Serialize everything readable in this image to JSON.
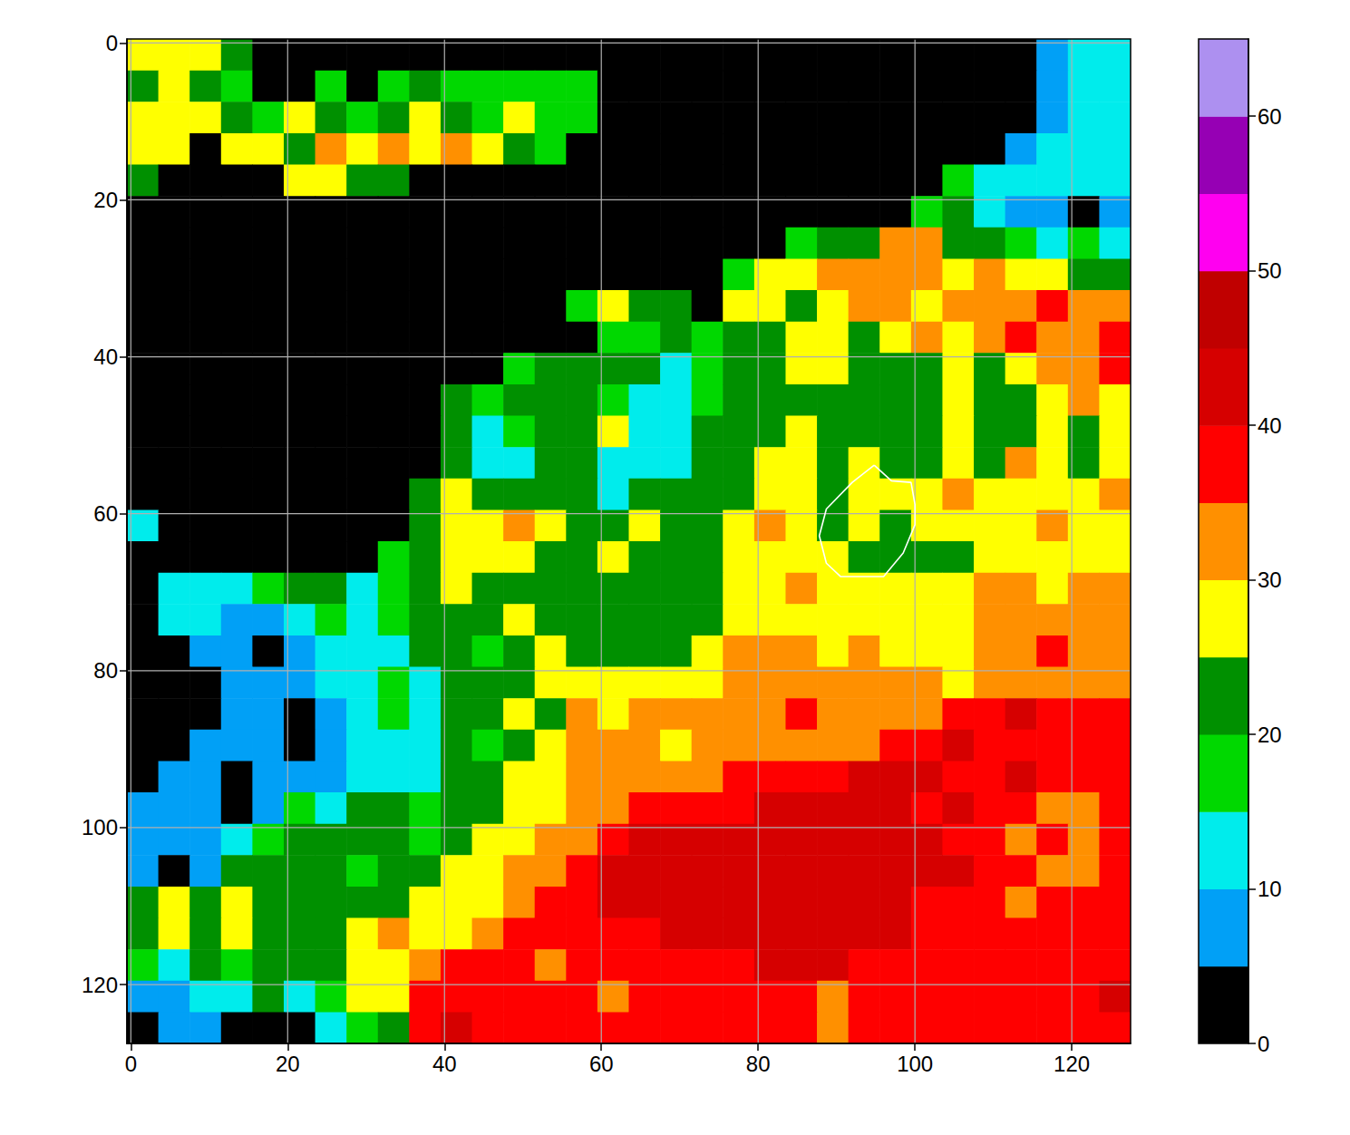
{
  "chart_data": {
    "type": "heatmap",
    "xlim": [
      -0.5,
      127.5
    ],
    "ylim": [
      127.5,
      -0.5
    ],
    "xticks": [
      0,
      20,
      40,
      60,
      80,
      100,
      120
    ],
    "yticks": [
      0,
      20,
      40,
      60,
      80,
      100,
      120
    ],
    "grid": true,
    "cells": {
      "x": [
        1.5,
        5.5,
        9.5,
        13.5,
        17.5,
        21.5,
        25.5,
        29.5,
        33.5,
        37.5,
        41.5,
        45.5,
        49.5,
        53.5,
        57.5,
        61.5,
        65.5,
        69.5,
        73.5,
        77.5,
        81.5,
        85.5,
        89.5,
        93.5,
        97.5,
        101.5,
        105.5,
        109.5,
        113.5,
        117.5,
        121.5,
        125.5
      ],
      "y": [
        1.5,
        5.5,
        9.5,
        13.5,
        17.5,
        21.5,
        25.5,
        29.5,
        33.5,
        37.5,
        41.5,
        45.5,
        49.5,
        53.5,
        57.5,
        61.5,
        65.5,
        69.5,
        73.5,
        77.5,
        81.5,
        85.5,
        89.5,
        93.5,
        97.5,
        101.5,
        105.5,
        109.5,
        113.5,
        117.5,
        121.5,
        125.5
      ],
      "values": [
        [
          27,
          27,
          27,
          22,
          0,
          0,
          0,
          0,
          0,
          0,
          0,
          0,
          0,
          0,
          0,
          0,
          0,
          0,
          0,
          0,
          0,
          0,
          0,
          0,
          0,
          0,
          0,
          0,
          0,
          7,
          12,
          12
        ],
        [
          22,
          27,
          22,
          17,
          0,
          0,
          17,
          0,
          17,
          22,
          17,
          17,
          17,
          17,
          17,
          0,
          0,
          0,
          0,
          0,
          0,
          0,
          0,
          0,
          0,
          0,
          0,
          0,
          0,
          7,
          12,
          12
        ],
        [
          27,
          27,
          27,
          22,
          17,
          27,
          22,
          17,
          22,
          27,
          22,
          17,
          27,
          17,
          17,
          0,
          0,
          0,
          0,
          0,
          0,
          0,
          0,
          0,
          0,
          0,
          0,
          0,
          0,
          7,
          12,
          12
        ],
        [
          27,
          27,
          0,
          27,
          27,
          22,
          32,
          27,
          32,
          27,
          32,
          27,
          22,
          17,
          0,
          0,
          0,
          0,
          0,
          0,
          0,
          0,
          0,
          0,
          0,
          0,
          0,
          0,
          7,
          12,
          12,
          12
        ],
        [
          22,
          0,
          0,
          0,
          0,
          27,
          27,
          22,
          22,
          0,
          0,
          0,
          0,
          0,
          0,
          0,
          0,
          0,
          0,
          0,
          0,
          0,
          0,
          0,
          0,
          0,
          17,
          12,
          12,
          12,
          12,
          12
        ],
        [
          0,
          0,
          0,
          0,
          0,
          0,
          0,
          0,
          0,
          0,
          0,
          0,
          0,
          0,
          0,
          0,
          0,
          0,
          0,
          0,
          0,
          0,
          0,
          0,
          0,
          17,
          22,
          12,
          7,
          7,
          0,
          7
        ],
        [
          0,
          0,
          0,
          0,
          0,
          0,
          0,
          0,
          0,
          0,
          0,
          0,
          0,
          0,
          0,
          0,
          0,
          0,
          0,
          0,
          0,
          17,
          22,
          22,
          32,
          32,
          22,
          22,
          17,
          12,
          17,
          12
        ],
        [
          0,
          0,
          0,
          0,
          0,
          0,
          0,
          0,
          0,
          0,
          0,
          0,
          0,
          0,
          0,
          0,
          0,
          0,
          0,
          17,
          27,
          27,
          32,
          32,
          32,
          32,
          27,
          32,
          27,
          27,
          22,
          22
        ],
        [
          0,
          0,
          0,
          0,
          0,
          0,
          0,
          0,
          0,
          0,
          0,
          0,
          0,
          0,
          17,
          27,
          22,
          22,
          0,
          27,
          27,
          22,
          27,
          32,
          32,
          27,
          32,
          32,
          32,
          37,
          32,
          32
        ],
        [
          0,
          0,
          0,
          0,
          0,
          0,
          0,
          0,
          0,
          0,
          0,
          0,
          0,
          0,
          0,
          17,
          17,
          22,
          17,
          22,
          22,
          27,
          27,
          22,
          27,
          32,
          27,
          32,
          37,
          32,
          32,
          37
        ],
        [
          0,
          0,
          0,
          0,
          0,
          0,
          0,
          0,
          0,
          0,
          0,
          0,
          17,
          22,
          22,
          22,
          22,
          12,
          17,
          22,
          22,
          27,
          27,
          22,
          22,
          22,
          27,
          22,
          27,
          32,
          32,
          37
        ],
        [
          0,
          0,
          0,
          0,
          0,
          0,
          0,
          0,
          0,
          0,
          22,
          17,
          22,
          22,
          22,
          17,
          12,
          12,
          17,
          22,
          22,
          22,
          22,
          22,
          22,
          22,
          27,
          22,
          22,
          27,
          32,
          27
        ],
        [
          0,
          0,
          0,
          0,
          0,
          0,
          0,
          0,
          0,
          0,
          22,
          12,
          17,
          22,
          22,
          27,
          12,
          12,
          22,
          22,
          22,
          27,
          22,
          22,
          22,
          22,
          27,
          22,
          22,
          27,
          22,
          27
        ],
        [
          0,
          0,
          0,
          0,
          0,
          0,
          0,
          0,
          0,
          0,
          22,
          12,
          12,
          22,
          22,
          12,
          12,
          12,
          22,
          22,
          27,
          27,
          22,
          27,
          22,
          22,
          27,
          22,
          32,
          27,
          22,
          27
        ],
        [
          0,
          0,
          0,
          0,
          0,
          0,
          0,
          0,
          0,
          22,
          27,
          22,
          22,
          22,
          22,
          12,
          22,
          22,
          22,
          22,
          27,
          27,
          22,
          27,
          27,
          27,
          32,
          27,
          27,
          27,
          27,
          32
        ],
        [
          12,
          0,
          0,
          0,
          0,
          0,
          0,
          0,
          0,
          22,
          27,
          27,
          32,
          27,
          22,
          22,
          27,
          22,
          22,
          27,
          32,
          27,
          22,
          27,
          22,
          27,
          27,
          27,
          27,
          32,
          27,
          27
        ],
        [
          0,
          0,
          0,
          0,
          0,
          0,
          0,
          0,
          17,
          22,
          27,
          27,
          27,
          22,
          22,
          27,
          22,
          22,
          22,
          27,
          27,
          27,
          27,
          22,
          22,
          22,
          22,
          27,
          27,
          27,
          27,
          27
        ],
        [
          0,
          12,
          12,
          12,
          17,
          22,
          22,
          12,
          17,
          22,
          27,
          22,
          22,
          22,
          22,
          22,
          22,
          22,
          22,
          27,
          27,
          32,
          27,
          27,
          27,
          27,
          27,
          32,
          32,
          27,
          32,
          32
        ],
        [
          0,
          12,
          12,
          7,
          7,
          12,
          17,
          12,
          17,
          22,
          22,
          22,
          27,
          22,
          22,
          22,
          22,
          22,
          22,
          27,
          27,
          27,
          27,
          27,
          27,
          27,
          27,
          32,
          32,
          32,
          32,
          32
        ],
        [
          0,
          0,
          7,
          7,
          0,
          7,
          12,
          12,
          12,
          22,
          22,
          17,
          22,
          27,
          22,
          22,
          22,
          22,
          27,
          32,
          32,
          32,
          27,
          32,
          27,
          27,
          27,
          32,
          32,
          37,
          32,
          32
        ],
        [
          0,
          0,
          0,
          7,
          7,
          7,
          12,
          12,
          17,
          12,
          22,
          22,
          22,
          27,
          27,
          27,
          27,
          27,
          27,
          32,
          32,
          32,
          32,
          32,
          32,
          32,
          27,
          32,
          32,
          32,
          32,
          32
        ],
        [
          0,
          0,
          0,
          7,
          7,
          0,
          7,
          12,
          17,
          12,
          22,
          22,
          27,
          22,
          32,
          27,
          32,
          32,
          32,
          32,
          32,
          37,
          32,
          32,
          32,
          32,
          37,
          37,
          42,
          37,
          37,
          37
        ],
        [
          0,
          0,
          7,
          7,
          7,
          0,
          7,
          12,
          12,
          12,
          22,
          17,
          22,
          27,
          32,
          32,
          32,
          27,
          32,
          32,
          32,
          32,
          32,
          32,
          37,
          37,
          42,
          37,
          37,
          37,
          37,
          37
        ],
        [
          0,
          7,
          7,
          0,
          7,
          7,
          7,
          12,
          12,
          12,
          22,
          22,
          27,
          27,
          32,
          32,
          32,
          32,
          32,
          37,
          37,
          37,
          37,
          42,
          42,
          42,
          37,
          37,
          42,
          37,
          37,
          37
        ],
        [
          7,
          7,
          7,
          0,
          7,
          17,
          12,
          22,
          22,
          17,
          22,
          22,
          27,
          27,
          32,
          32,
          37,
          37,
          37,
          37,
          42,
          42,
          42,
          42,
          42,
          37,
          42,
          37,
          37,
          32,
          32,
          37
        ],
        [
          7,
          7,
          7,
          12,
          17,
          22,
          22,
          22,
          22,
          17,
          22,
          27,
          27,
          32,
          32,
          37,
          42,
          42,
          42,
          42,
          42,
          42,
          42,
          42,
          42,
          42,
          37,
          37,
          32,
          37,
          32,
          37
        ],
        [
          7,
          0,
          7,
          22,
          22,
          22,
          22,
          17,
          22,
          22,
          27,
          27,
          32,
          32,
          37,
          42,
          42,
          42,
          42,
          42,
          42,
          42,
          42,
          42,
          42,
          42,
          42,
          37,
          37,
          32,
          32,
          37
        ],
        [
          22,
          27,
          22,
          27,
          22,
          22,
          22,
          22,
          22,
          27,
          27,
          27,
          32,
          37,
          37,
          42,
          42,
          42,
          42,
          42,
          42,
          42,
          42,
          42,
          42,
          37,
          37,
          37,
          32,
          37,
          37,
          37
        ],
        [
          22,
          27,
          22,
          27,
          22,
          22,
          22,
          27,
          32,
          27,
          27,
          32,
          37,
          37,
          37,
          37,
          37,
          42,
          42,
          42,
          42,
          42,
          42,
          42,
          42,
          37,
          37,
          37,
          37,
          37,
          37,
          37
        ],
        [
          17,
          12,
          22,
          17,
          22,
          22,
          22,
          27,
          27,
          32,
          37,
          37,
          37,
          32,
          37,
          37,
          37,
          37,
          37,
          37,
          42,
          42,
          42,
          37,
          37,
          37,
          37,
          37,
          37,
          37,
          37,
          37
        ],
        [
          7,
          7,
          12,
          12,
          22,
          12,
          17,
          27,
          27,
          37,
          37,
          37,
          37,
          37,
          37,
          32,
          37,
          37,
          37,
          37,
          37,
          37,
          32,
          37,
          37,
          37,
          37,
          37,
          37,
          37,
          37,
          42
        ],
        [
          0,
          7,
          7,
          0,
          0,
          0,
          12,
          17,
          22,
          37,
          42,
          37,
          37,
          37,
          37,
          37,
          37,
          37,
          37,
          37,
          37,
          37,
          32,
          37,
          37,
          37,
          37,
          37,
          37,
          37,
          37,
          37
        ]
      ]
    },
    "contour": {
      "color": "#ffffff",
      "x": [
        94.8,
        97,
        99.5,
        100,
        100,
        98.5,
        96,
        90.5,
        88.7,
        87.8,
        88.7,
        92,
        94.8
      ],
      "y": [
        53.8,
        55.8,
        56,
        58.8,
        61.4,
        65,
        68,
        68,
        66.3,
        62.8,
        59.4,
        56,
        53.8
      ]
    },
    "colorbar": {
      "range": [
        0,
        65
      ],
      "ticks": [
        0,
        10,
        20,
        30,
        40,
        50,
        60
      ],
      "bins": [
        0,
        5,
        10,
        15,
        20,
        25,
        30,
        35,
        40,
        45,
        50,
        55,
        60,
        65
      ],
      "colors": [
        "#000000",
        "#01a0f6",
        "#00ecec",
        "#00d800",
        "#009000",
        "#ffff00",
        "#ff9000",
        "#ff0000",
        "#d60000",
        "#c00000",
        "#ff00f0",
        "#9600b4",
        "#ad90f0"
      ]
    }
  }
}
